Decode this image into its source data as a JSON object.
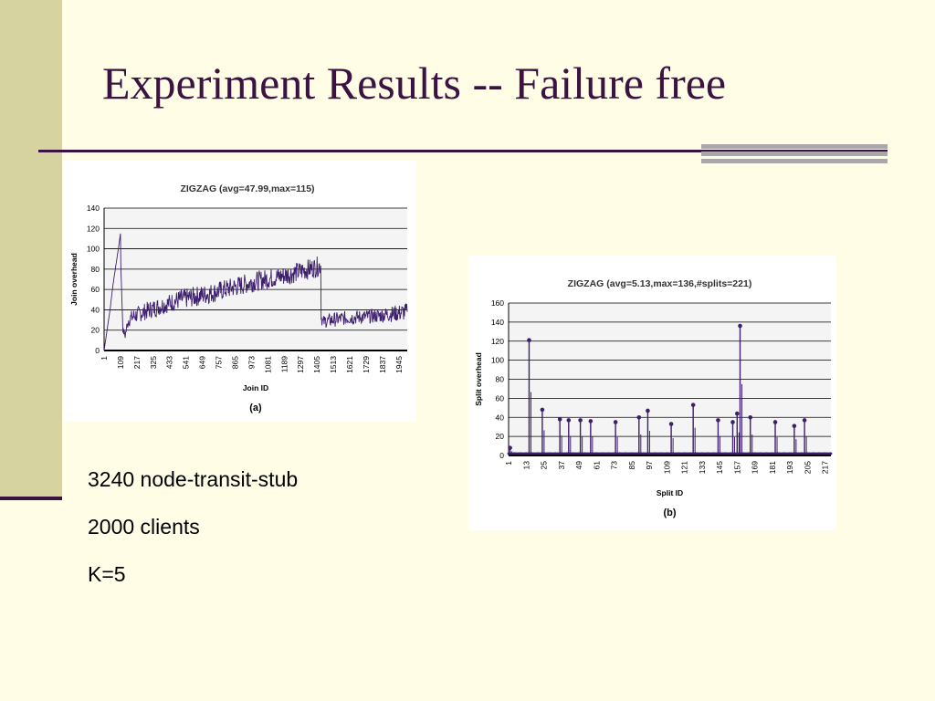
{
  "slide": {
    "title": "Experiment Results -- Failure free",
    "bullets": [
      "3240 node-transit-stub",
      "2000 clients",
      "K=5"
    ]
  },
  "colors": {
    "background": "#FFFDE6",
    "sidebar": "#D6D3A0",
    "title": "#3B1241",
    "series": "#3D1F6E",
    "accent_bars": "#A9A7A7"
  },
  "chart_data": [
    {
      "type": "line",
      "title": "ZIGZAG (avg=47.99,max=115)",
      "xlabel": "Join ID",
      "ylabel": "Join overhead",
      "caption": "(a)",
      "ylim": [
        0,
        140
      ],
      "yticks": [
        0,
        20,
        40,
        60,
        80,
        100,
        120,
        140
      ],
      "xticks": [
        "1",
        "109",
        "217",
        "325",
        "433",
        "541",
        "649",
        "757",
        "865",
        "973",
        "1081",
        "1189",
        "1297",
        "1405",
        "1513",
        "1621",
        "1729",
        "1837",
        "1945"
      ],
      "xlim": [
        1,
        2000
      ],
      "grid": true,
      "series": [
        {
          "values_x": [
            1,
            40,
            60,
            80,
            100,
            109,
            112,
            125,
            140,
            150,
            160,
            200,
            217,
            300,
            400,
            500,
            600,
            700,
            800,
            900,
            1000,
            1100,
            1200,
            1300,
            1400,
            1430,
            1432,
            1440,
            1500,
            1600,
            1700,
            1800,
            1900,
            2000
          ],
          "values_y": [
            0,
            40,
            65,
            85,
            105,
            115,
            80,
            20,
            15,
            22,
            30,
            34,
            35,
            40,
            45,
            50,
            53,
            56,
            60,
            64,
            68,
            71,
            74,
            78,
            82,
            84,
            35,
            28,
            30,
            32,
            33,
            34,
            36,
            38
          ],
          "noise": [
            0,
            0,
            0,
            0,
            0,
            0,
            0,
            3,
            5,
            6,
            7,
            8,
            8,
            9,
            9,
            10,
            10,
            10,
            10,
            10,
            10,
            10,
            10,
            10,
            10,
            10,
            6,
            6,
            7,
            7,
            7,
            7,
            8,
            9
          ]
        }
      ]
    },
    {
      "type": "line",
      "title": "ZIGZAG (avg=5.13,max=136,#splits=221)",
      "xlabel": "Split ID",
      "ylabel": "Split overhead",
      "caption": "(b)",
      "ylim": [
        0,
        160
      ],
      "yticks": [
        0,
        20,
        40,
        60,
        80,
        100,
        120,
        140,
        160
      ],
      "xticks": [
        "1",
        "13",
        "25",
        "37",
        "49",
        "61",
        "73",
        "85",
        "97",
        "109",
        "121",
        "133",
        "145",
        "157",
        "169",
        "181",
        "193",
        "205",
        "217"
      ],
      "xlim": [
        1,
        221
      ],
      "grid": true,
      "baseline": 2,
      "spikes": [
        {
          "x": 2,
          "y": 8
        },
        {
          "x": 15,
          "y": 121
        },
        {
          "x": 24,
          "y": 48
        },
        {
          "x": 36,
          "y": 38
        },
        {
          "x": 42,
          "y": 37
        },
        {
          "x": 50,
          "y": 37
        },
        {
          "x": 57,
          "y": 36
        },
        {
          "x": 74,
          "y": 35
        },
        {
          "x": 90,
          "y": 40
        },
        {
          "x": 96,
          "y": 47
        },
        {
          "x": 112,
          "y": 33
        },
        {
          "x": 127,
          "y": 53
        },
        {
          "x": 144,
          "y": 37
        },
        {
          "x": 154,
          "y": 35
        },
        {
          "x": 157,
          "y": 44
        },
        {
          "x": 159,
          "y": 136
        },
        {
          "x": 166,
          "y": 40
        },
        {
          "x": 183,
          "y": 35
        },
        {
          "x": 196,
          "y": 31
        },
        {
          "x": 203,
          "y": 37
        }
      ]
    }
  ]
}
